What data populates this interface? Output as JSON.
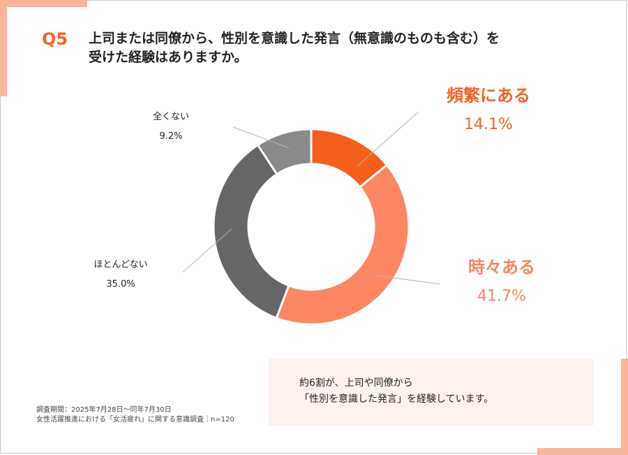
{
  "question": {
    "number": "Q5",
    "line1": "上司または同僚から、性別を意識した発言（無意識のものも含む）を",
    "line2": "受けた経験はありますか。"
  },
  "chart_data": {
    "type": "pie",
    "donut": true,
    "title": "上司または同僚から、性別を意識した発言（無意識のものも含む）を受けた経験はありますか。",
    "slices": [
      {
        "label": "頻繁にある",
        "value": 14.1,
        "display": "14.1%",
        "color": "#f4601c"
      },
      {
        "label": "時々ある",
        "value": 41.7,
        "display": "41.7%",
        "color": "#fd8762"
      },
      {
        "label": "ほとんどない",
        "value": 35.0,
        "display": "35.0%",
        "color": "#666666"
      },
      {
        "label": "全くない",
        "value": 9.2,
        "display": "9.2%",
        "color": "#898989"
      }
    ]
  },
  "callout": {
    "line1": "約6割が、上司や同僚から",
    "line2": "「性別を意識した発言」を経験しています。"
  },
  "footnote": {
    "line1": "調査期間：2025年7月28日～同年7月30日",
    "line2": "女性活躍推進における「女活疲れ」に関する意識調査｜n=120"
  },
  "colors": {
    "accent": "#f06423",
    "decoration": "#fbb49a",
    "callout_bg": "#fdf2ee"
  }
}
